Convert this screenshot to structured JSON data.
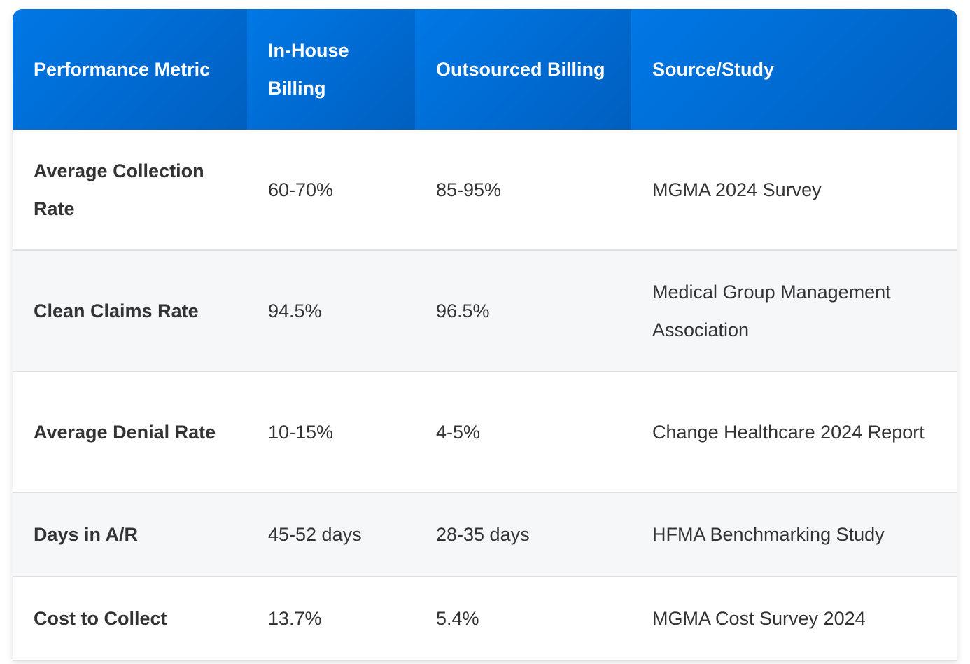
{
  "table": {
    "headers": [
      "Performance Metric",
      "In-House Billing",
      "Outsourced Billing",
      "Source/Study"
    ],
    "rows": [
      [
        "Average Collection Rate",
        "60-70%",
        "85-95%",
        "MGMA 2024 Survey"
      ],
      [
        "Clean Claims Rate",
        "94.5%",
        "96.5%",
        "Medical Group Management Association"
      ],
      [
        "Average Denial Rate",
        "10-15%",
        "4-5%",
        "Change Healthcare 2024 Report"
      ],
      [
        "Days in A/R",
        "45-52 days",
        "28-35 days",
        "HFMA Benchmarking Study"
      ],
      [
        "Cost to Collect",
        "13.7%",
        "5.4%",
        "MGMA Cost Survey 2024"
      ]
    ]
  }
}
